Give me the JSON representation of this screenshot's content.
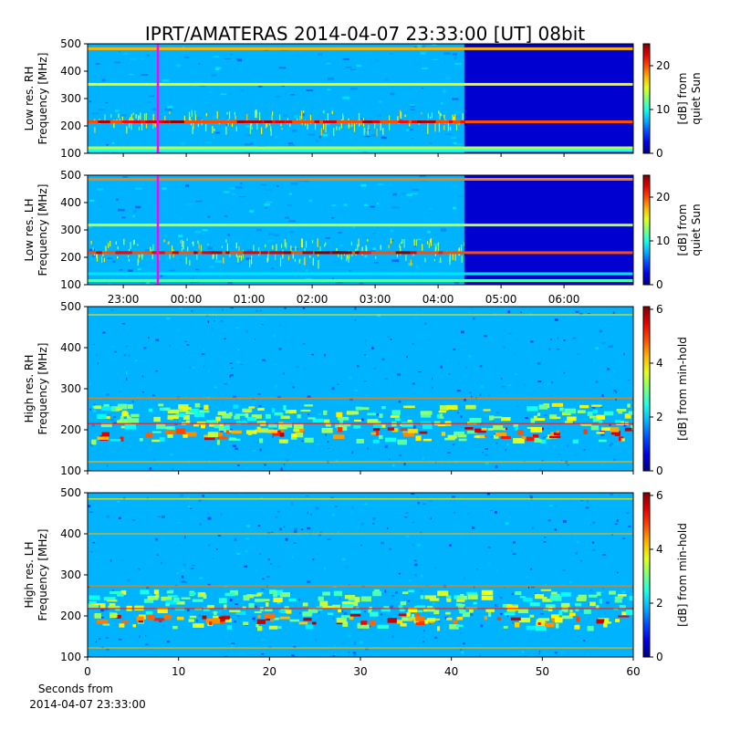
{
  "chart_data": {
    "type": "heatmap",
    "title": "IPRT/AMATERAS 2014-04-07 23:33:00 [UT]   08bit",
    "marker_time": "23:33",
    "panels": [
      {
        "name": "low-res-rh",
        "ylabel_lines": [
          "Low res. RH",
          "Frequency [MHz]"
        ],
        "ylim": [
          100,
          500
        ],
        "yticks": [
          100,
          200,
          300,
          400,
          500
        ],
        "xaxis": "time",
        "xlim": [
          "22:26",
          "07:06"
        ],
        "colorbar_label_lines": [
          "[dB] from",
          "quiet Sun"
        ],
        "colorbar_range": [
          0,
          25
        ],
        "colorbar_ticks": [
          0,
          10,
          20
        ],
        "bands": [
          {
            "freq": 215,
            "intensity": 0.8
          },
          {
            "freq": 352,
            "intensity": 0.6
          },
          {
            "freq": 482,
            "intensity": 0.7
          },
          {
            "freq": 120,
            "intensity": 0.55
          },
          {
            "freq": 110,
            "intensity": 0.4
          }
        ],
        "dark_after": "04:25",
        "burst_freq_range": [
          190,
          260
        ]
      },
      {
        "name": "low-res-lh",
        "ylabel_lines": [
          "Low res. LH",
          "Frequency [MHz]"
        ],
        "ylim": [
          100,
          500
        ],
        "yticks": [
          100,
          200,
          300,
          400,
          500
        ],
        "xaxis": "time",
        "xlim": [
          "22:26",
          "07:06"
        ],
        "xticks": [
          "23:00",
          "00:00",
          "01:00",
          "02:00",
          "03:00",
          "04:00",
          "05:00",
          "06:00"
        ],
        "colorbar_label_lines": [
          "[dB] from",
          "quiet Sun"
        ],
        "colorbar_range": [
          0,
          25
        ],
        "colorbar_ticks": [
          0,
          10,
          20
        ],
        "bands": [
          {
            "freq": 217,
            "intensity": 0.8
          },
          {
            "freq": 318,
            "intensity": 0.55
          },
          {
            "freq": 485,
            "intensity": 0.75
          },
          {
            "freq": 115,
            "intensity": 0.45
          },
          {
            "freq": 140,
            "intensity": 0.35
          }
        ],
        "dark_after": "04:25",
        "burst_freq_range": [
          190,
          270
        ]
      },
      {
        "name": "high-res-rh",
        "ylabel_lines": [
          "High res. RH",
          "Frequency [MHz]"
        ],
        "ylim": [
          100,
          500
        ],
        "yticks": [
          100,
          200,
          300,
          400,
          500
        ],
        "xaxis": "seconds",
        "xlim": [
          0,
          60
        ],
        "colorbar_label_lines": [
          "[dB] from min-hold"
        ],
        "colorbar_range": [
          0,
          6.1
        ],
        "colorbar_ticks": [
          0,
          2,
          4,
          6
        ],
        "bands": [
          {
            "freq": 215,
            "intensity": 0.45
          },
          {
            "freq": 277,
            "intensity": 0.35
          },
          {
            "freq": 122,
            "intensity": 0.3
          },
          {
            "freq": 480,
            "intensity": 0.25
          }
        ],
        "emission_freq_range": [
          175,
          265
        ],
        "emission_peak_freq": 195
      },
      {
        "name": "high-res-lh",
        "ylabel_lines": [
          "High res. LH",
          "Frequency [MHz]"
        ],
        "ylim": [
          100,
          500
        ],
        "yticks": [
          100,
          200,
          300,
          400,
          500
        ],
        "xaxis": "seconds",
        "xlim": [
          0,
          60
        ],
        "xticks": [
          0,
          10,
          20,
          30,
          40,
          50,
          60
        ],
        "colorbar_label_lines": [
          "[dB] from min-hold"
        ],
        "colorbar_range": [
          0,
          6.1
        ],
        "colorbar_ticks": [
          0,
          2,
          4,
          6
        ],
        "bands": [
          {
            "freq": 218,
            "intensity": 0.45
          },
          {
            "freq": 273,
            "intensity": 0.35
          },
          {
            "freq": 400,
            "intensity": 0.3
          },
          {
            "freq": 122,
            "intensity": 0.3
          },
          {
            "freq": 485,
            "intensity": 0.25
          }
        ],
        "emission_freq_range": [
          175,
          265
        ],
        "emission_peak_freq": 195
      }
    ],
    "xlabel_lines": [
      "Seconds from",
      "2014-04-07 23:33:00"
    ],
    "colormap": "jet"
  }
}
